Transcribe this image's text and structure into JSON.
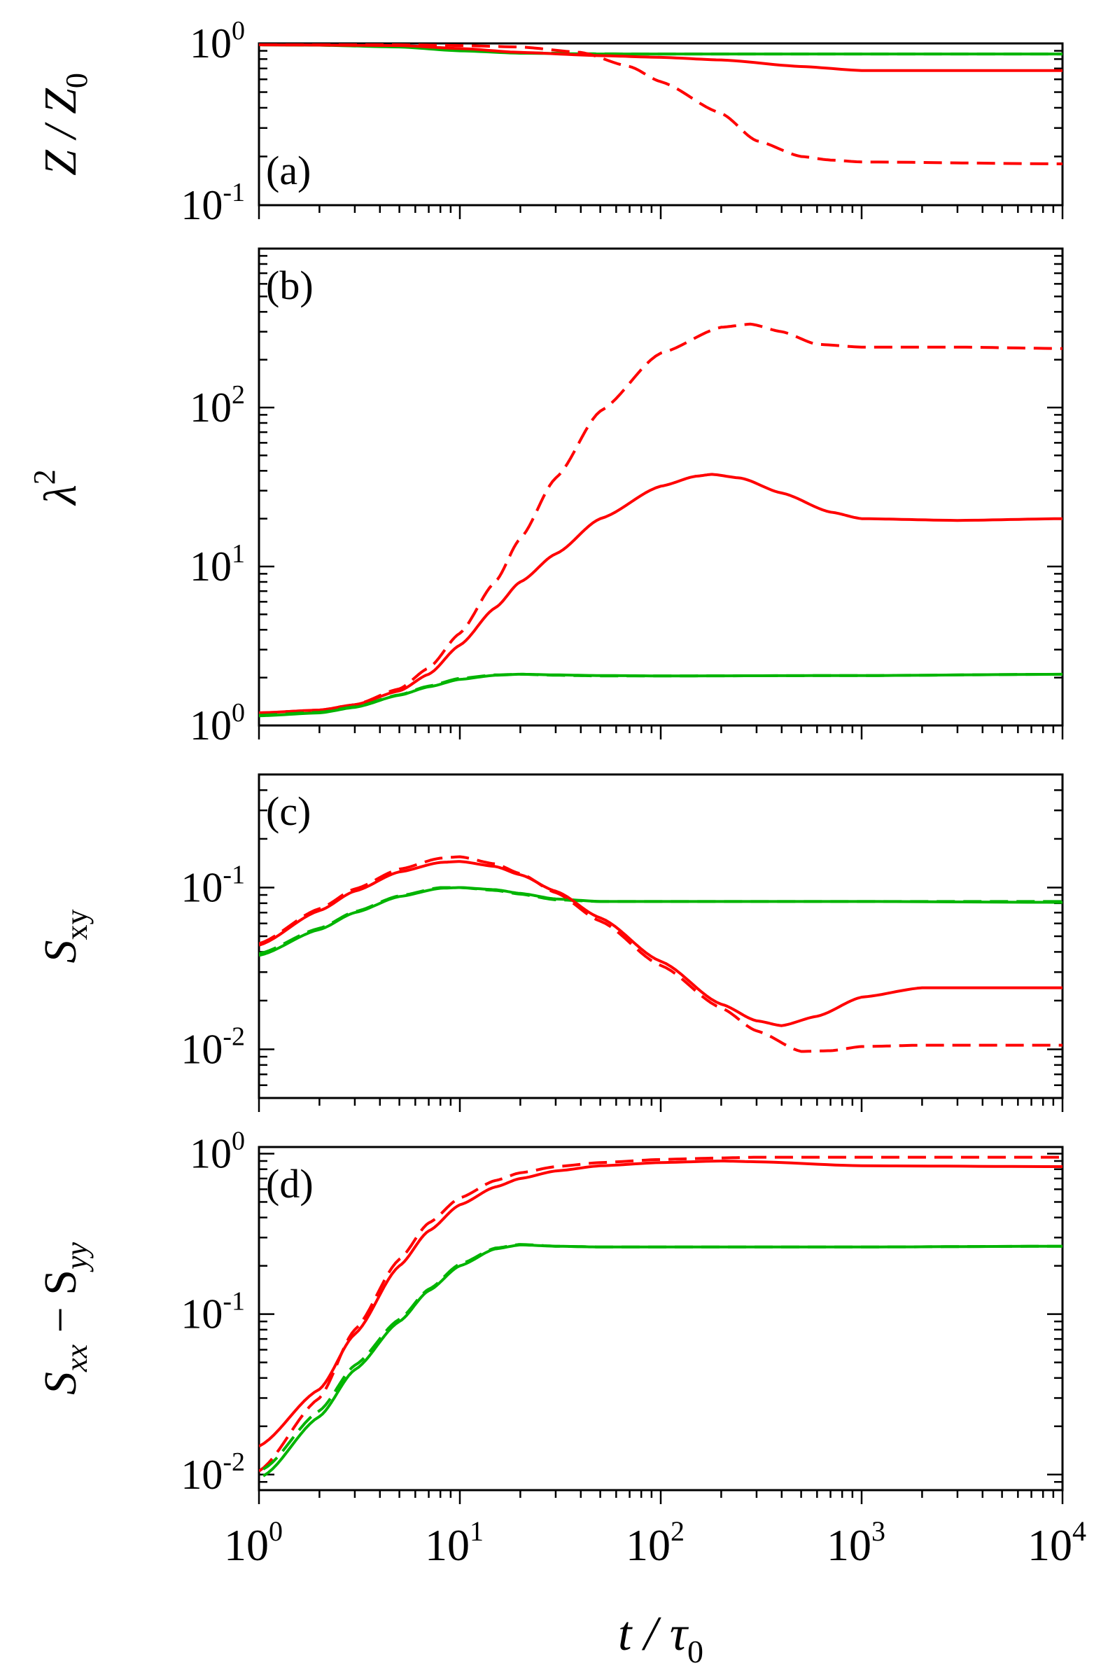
{
  "chart_data": [
    {
      "type": "line",
      "panel_label": "(a)",
      "ylabel": "Z / Z0",
      "ylabel_parts": {
        "main": "Z / Z",
        "sub": "0"
      },
      "xscale": "log",
      "yscale": "log",
      "xlim": [
        1,
        10000
      ],
      "ylim": [
        0.1,
        1
      ],
      "yticks": [
        {
          "base": "10",
          "exp": "0",
          "value": 1
        },
        {
          "base": "10",
          "exp": "-1",
          "value": 0.1
        }
      ],
      "series": [
        {
          "name": "green solid",
          "color": "#00b400",
          "dash": "solid",
          "x": [
            1,
            2,
            5,
            10,
            20,
            50,
            100,
            1000,
            10000
          ],
          "y": [
            0.98,
            0.975,
            0.95,
            0.9,
            0.87,
            0.86,
            0.86,
            0.86,
            0.86
          ]
        },
        {
          "name": "green dashed",
          "color": "#00b400",
          "dash": "dashed",
          "x": [
            1,
            2,
            5,
            10,
            20,
            50,
            100,
            1000,
            10000
          ],
          "y": [
            0.98,
            0.975,
            0.955,
            0.91,
            0.875,
            0.862,
            0.86,
            0.86,
            0.86
          ]
        },
        {
          "name": "red solid",
          "color": "#ff0000",
          "dash": "solid",
          "x": [
            1,
            5,
            10,
            20,
            50,
            100,
            200,
            500,
            1000,
            10000
          ],
          "y": [
            0.98,
            0.97,
            0.93,
            0.88,
            0.84,
            0.82,
            0.79,
            0.72,
            0.68,
            0.68
          ]
        },
        {
          "name": "red dashed",
          "color": "#ff0000",
          "dash": "dashed",
          "x": [
            1,
            5,
            10,
            20,
            40,
            70,
            100,
            200,
            300,
            500,
            700,
            1000,
            10000
          ],
          "y": [
            0.98,
            0.98,
            0.97,
            0.95,
            0.88,
            0.72,
            0.58,
            0.37,
            0.25,
            0.2,
            0.19,
            0.185,
            0.18
          ]
        }
      ]
    },
    {
      "type": "line",
      "panel_label": "(b)",
      "ylabel": "λ2",
      "ylabel_parts": {
        "main": "λ",
        "sup": "2"
      },
      "xscale": "log",
      "yscale": "log",
      "xlim": [
        1,
        10000
      ],
      "ylim": [
        1,
        1000
      ],
      "yticks": [
        {
          "base": "10",
          "exp": "0",
          "value": 1
        },
        {
          "base": "10",
          "exp": "1",
          "value": 10
        },
        {
          "base": "10",
          "exp": "2",
          "value": 100
        }
      ],
      "series": [
        {
          "name": "red dashed",
          "color": "#ff0000",
          "dash": "dashed",
          "x": [
            1,
            2,
            3,
            5,
            7,
            10,
            15,
            20,
            30,
            50,
            100,
            200,
            280,
            400,
            600,
            1000,
            3000,
            10000
          ],
          "y": [
            1.2,
            1.25,
            1.35,
            1.7,
            2.3,
            3.8,
            8,
            15,
            36,
            95,
            220,
            320,
            335,
            300,
            250,
            240,
            240,
            235
          ]
        },
        {
          "name": "red solid",
          "color": "#ff0000",
          "dash": "solid",
          "x": [
            1,
            2,
            3,
            5,
            7,
            10,
            15,
            20,
            30,
            50,
            100,
            150,
            180,
            250,
            400,
            700,
            1000,
            3000,
            10000
          ],
          "y": [
            1.2,
            1.25,
            1.35,
            1.65,
            2.1,
            3.2,
            5.5,
            8,
            12,
            20,
            32,
            37,
            38,
            36,
            29,
            22,
            20,
            19.5,
            20
          ]
        },
        {
          "name": "green solid",
          "color": "#00b400",
          "dash": "solid",
          "x": [
            1,
            2,
            3,
            5,
            7,
            10,
            15,
            20,
            30,
            50,
            100,
            1000,
            10000
          ],
          "y": [
            1.15,
            1.2,
            1.3,
            1.55,
            1.75,
            1.95,
            2.07,
            2.1,
            2.08,
            2.06,
            2.05,
            2.06,
            2.1
          ]
        },
        {
          "name": "green dashed",
          "color": "#00b400",
          "dash": "dashed",
          "x": [
            1,
            2,
            3,
            5,
            7,
            10,
            15,
            20,
            30,
            50,
            100,
            1000,
            10000
          ],
          "y": [
            1.16,
            1.21,
            1.31,
            1.56,
            1.77,
            1.98,
            2.08,
            2.1,
            2.07,
            2.05,
            2.05,
            2.06,
            2.1
          ]
        }
      ]
    },
    {
      "type": "line",
      "panel_label": "(c)",
      "ylabel": "Sxy",
      "ylabel_parts": {
        "main": "S",
        "sub": "xy"
      },
      "xscale": "log",
      "yscale": "log",
      "xlim": [
        1,
        10000
      ],
      "ylim": [
        0.005,
        0.5
      ],
      "yticks": [
        {
          "base": "10",
          "exp": "-1",
          "value": 0.1
        },
        {
          "base": "10",
          "exp": "-2",
          "value": 0.01
        }
      ],
      "series": [
        {
          "name": "green solid",
          "color": "#00b400",
          "dash": "solid",
          "x": [
            1,
            2,
            3,
            5,
            8,
            10,
            15,
            20,
            30,
            50,
            100,
            1000,
            10000
          ],
          "y": [
            0.038,
            0.055,
            0.07,
            0.088,
            0.099,
            0.1,
            0.097,
            0.092,
            0.085,
            0.082,
            0.082,
            0.082,
            0.081
          ]
        },
        {
          "name": "green dashed",
          "color": "#00b400",
          "dash": "dashed",
          "x": [
            1,
            2,
            3,
            5,
            8,
            10,
            15,
            20,
            30,
            50,
            100,
            1000,
            10000
          ],
          "y": [
            0.039,
            0.056,
            0.071,
            0.089,
            0.1,
            0.1,
            0.096,
            0.091,
            0.084,
            0.082,
            0.082,
            0.082,
            0.082
          ]
        },
        {
          "name": "red solid",
          "color": "#ff0000",
          "dash": "solid",
          "x": [
            1,
            2,
            3,
            5,
            8,
            10,
            15,
            20,
            30,
            50,
            100,
            200,
            300,
            400,
            600,
            1000,
            2000,
            10000
          ],
          "y": [
            0.044,
            0.072,
            0.095,
            0.125,
            0.143,
            0.145,
            0.135,
            0.12,
            0.095,
            0.065,
            0.035,
            0.019,
            0.015,
            0.014,
            0.016,
            0.021,
            0.024,
            0.024
          ]
        },
        {
          "name": "red dashed",
          "color": "#ff0000",
          "dash": "dashed",
          "x": [
            1,
            2,
            3,
            5,
            8,
            10,
            15,
            20,
            30,
            50,
            100,
            200,
            300,
            500,
            700,
            1000,
            2000,
            10000
          ],
          "y": [
            0.045,
            0.074,
            0.098,
            0.13,
            0.152,
            0.155,
            0.14,
            0.122,
            0.093,
            0.062,
            0.033,
            0.018,
            0.013,
            0.0097,
            0.0098,
            0.0104,
            0.0106,
            0.0106
          ]
        }
      ]
    },
    {
      "type": "line",
      "panel_label": "(d)",
      "ylabel": "Sxx − Syy",
      "ylabel_parts": {
        "main1": "S",
        "sub1": "xx",
        "mid": " − S",
        "sub2": "yy"
      },
      "xscale": "log",
      "yscale": "log",
      "xlim": [
        1,
        10000
      ],
      "ylim": [
        0.008,
        1.1
      ],
      "yticks": [
        {
          "base": "10",
          "exp": "0",
          "value": 1
        },
        {
          "base": "10",
          "exp": "-1",
          "value": 0.1
        },
        {
          "base": "10",
          "exp": "-2",
          "value": 0.01
        }
      ],
      "series": [
        {
          "name": "red solid",
          "color": "#ff0000",
          "dash": "solid",
          "x": [
            1,
            2,
            3,
            5,
            7,
            10,
            15,
            20,
            30,
            50,
            100,
            200,
            300,
            1000,
            10000
          ],
          "y": [
            0.015,
            0.034,
            0.075,
            0.2,
            0.33,
            0.48,
            0.62,
            0.7,
            0.78,
            0.84,
            0.88,
            0.9,
            0.89,
            0.84,
            0.83
          ]
        },
        {
          "name": "red dashed",
          "color": "#ff0000",
          "dash": "dashed",
          "x": [
            1,
            2,
            3,
            5,
            7,
            10,
            15,
            20,
            30,
            50,
            100,
            200,
            300,
            1000,
            10000
          ],
          "y": [
            0.0105,
            0.03,
            0.08,
            0.22,
            0.37,
            0.53,
            0.68,
            0.76,
            0.83,
            0.88,
            0.92,
            0.94,
            0.95,
            0.95,
            0.95
          ]
        },
        {
          "name": "green solid",
          "color": "#00b400",
          "dash": "solid",
          "x": [
            1.05,
            2,
            3,
            5,
            7,
            10,
            15,
            20,
            30,
            50,
            100,
            1000,
            10000
          ],
          "y": [
            0.0098,
            0.023,
            0.045,
            0.09,
            0.14,
            0.2,
            0.255,
            0.27,
            0.265,
            0.262,
            0.262,
            0.262,
            0.265
          ]
        },
        {
          "name": "green dashed",
          "color": "#00b400",
          "dash": "dashed",
          "x": [
            1.05,
            2,
            3,
            5,
            7,
            10,
            15,
            20,
            30,
            50,
            100,
            1000,
            10000
          ],
          "y": [
            0.0108,
            0.025,
            0.048,
            0.093,
            0.143,
            0.205,
            0.258,
            0.272,
            0.265,
            0.262,
            0.262,
            0.262,
            0.265
          ]
        }
      ]
    }
  ],
  "x_axis": {
    "label_main": "t / τ",
    "label_sub": "0",
    "ticks": [
      {
        "base": "10",
        "exp": "0",
        "value": 1
      },
      {
        "base": "10",
        "exp": "1",
        "value": 10
      },
      {
        "base": "10",
        "exp": "2",
        "value": 100
      },
      {
        "base": "10",
        "exp": "3",
        "value": 1000
      },
      {
        "base": "10",
        "exp": "4",
        "value": 10000
      }
    ]
  }
}
